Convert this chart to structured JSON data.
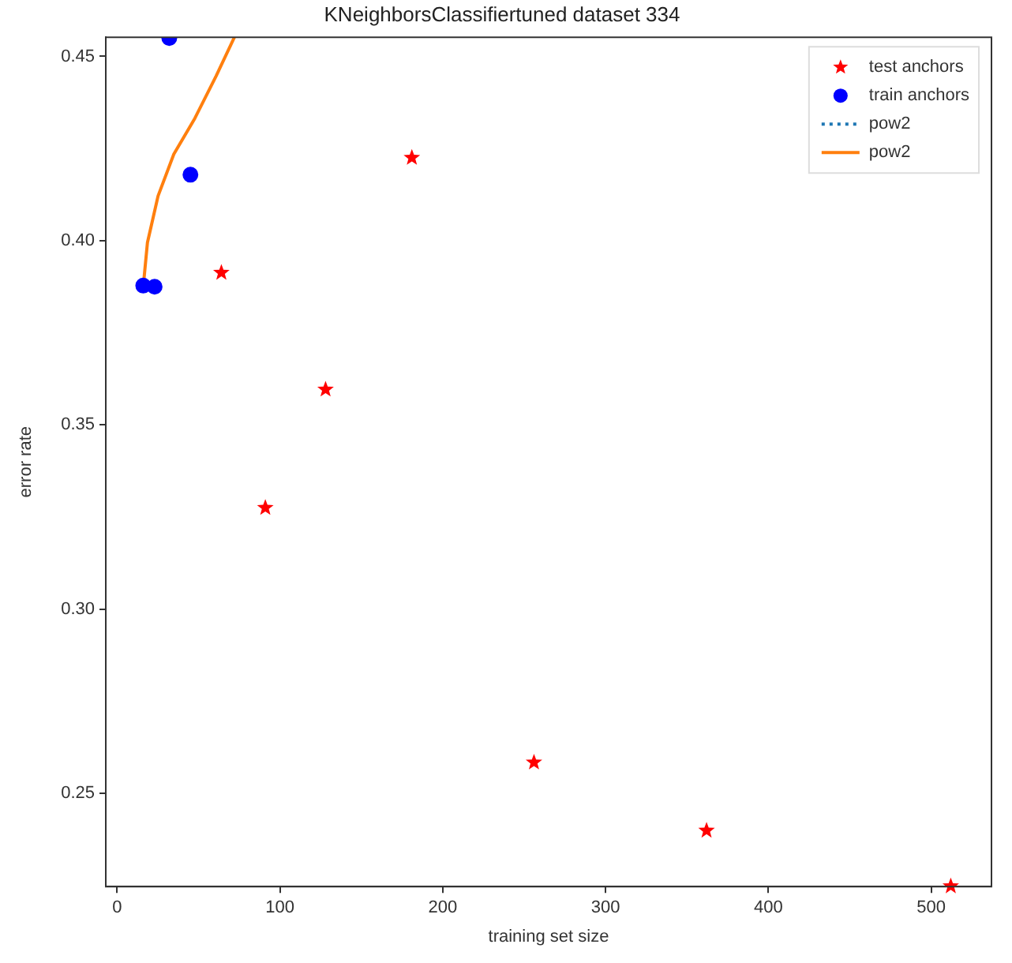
{
  "chart_data": {
    "type": "scatter",
    "title": "KNeighborsClassifiertuned dataset 334",
    "xlabel": "training set size",
    "ylabel": "error rate",
    "xlim": [
      -7,
      537
    ],
    "xticks": [
      0,
      100,
      200,
      300,
      400,
      500
    ],
    "ylim": [
      0.2247,
      0.4552
    ],
    "yticks": [
      0.25,
      {
        "value": 0.3,
        "label": "0.30"
      },
      0.35,
      {
        "value": 0.4,
        "label": "0.40"
      },
      0.45
    ],
    "grid": false,
    "legend": "top right",
    "series": [
      {
        "name": "test anchors",
        "marker": "star",
        "color": "#ff0000",
        "x": [
          64,
          91,
          128,
          181,
          256,
          362,
          512
        ],
        "values": [
          0.3913,
          0.3275,
          0.3596,
          0.4225,
          0.2584,
          0.2399,
          0.2248
        ]
      },
      {
        "name": "train anchors",
        "marker": "circle",
        "color": "#0000ff",
        "x": [
          16,
          23,
          32,
          45
        ],
        "values": [
          0.3878,
          0.3875,
          0.455,
          0.4179
        ]
      },
      {
        "name": "pow2",
        "type": "line",
        "line_style": "dotted",
        "color": "#1f77b4"
      },
      {
        "name": "pow2",
        "type": "line",
        "line_style": "solid",
        "color": "#ff7f0e",
        "x": [
          16.3,
          18.6,
          25.1,
          34.8,
          47.7,
          60.7,
          72
        ],
        "values": [
          0.3889,
          0.3995,
          0.4121,
          0.4235,
          0.4332,
          0.4446,
          0.4552
        ]
      }
    ]
  }
}
